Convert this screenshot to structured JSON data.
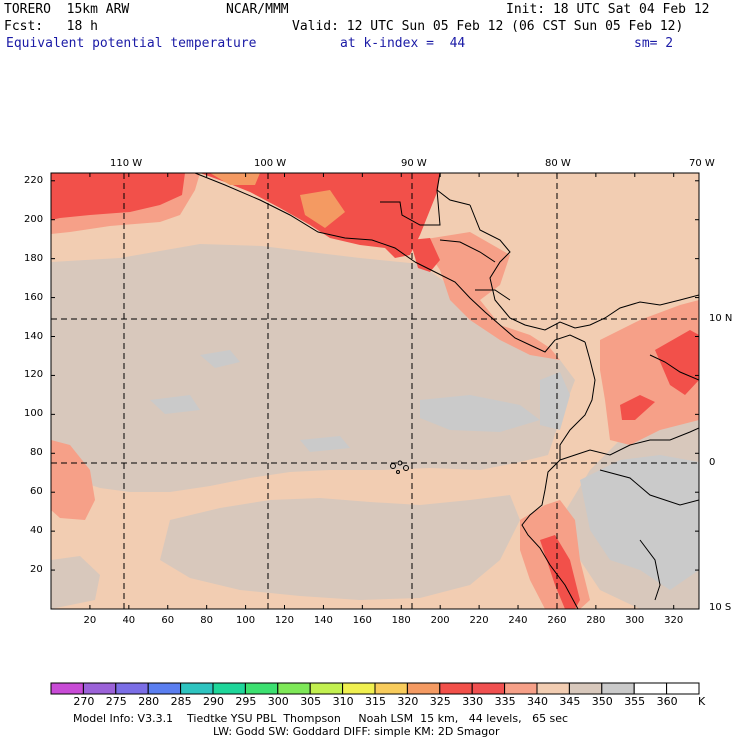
{
  "header": {
    "model": "TORERO  15km ARW",
    "org": "NCAR/MMM",
    "init": "Init: 18 UTC Sat 04 Feb 12",
    "fcst": "Fcst:   18 h",
    "valid": "Valid: 12 UTC Sun 05 Feb 12 (06 CST Sun 05 Feb 12)",
    "field": "Equivalent potential temperature",
    "level": "at k-index =  44",
    "smooth": "sm= 2"
  },
  "map": {
    "lon_labels": [
      "110 W",
      "100 W",
      "90 W",
      "80 W",
      "70 W"
    ],
    "lat_labels": [
      "10 N",
      "0",
      "10 S"
    ],
    "y_ticks": [
      "20",
      "40",
      "60",
      "80",
      "100",
      "120",
      "140",
      "160",
      "180",
      "200",
      "220"
    ],
    "x_ticks": [
      "20",
      "40",
      "60",
      "80",
      "100",
      "120",
      "140",
      "160",
      "180",
      "200",
      "220",
      "240",
      "260",
      "280",
      "300",
      "320"
    ]
  },
  "colorbar": {
    "unit": "K",
    "labels": [
      "270",
      "275",
      "280",
      "285",
      "290",
      "295",
      "300",
      "305",
      "310",
      "315",
      "320",
      "325",
      "330",
      "335",
      "340",
      "345",
      "350",
      "355",
      "360"
    ],
    "colors": [
      "#c84bd6",
      "#9b62d8",
      "#7b6ee6",
      "#5a7ef0",
      "#2ec4c0",
      "#1ed69a",
      "#3ce070",
      "#7ee858",
      "#c2f050",
      "#f0f050",
      "#f8cc5c",
      "#f49a62",
      "#f2504a",
      "#f05050",
      "#f6a088",
      "#f2cdb2",
      "#d8c8bc",
      "#cacaca",
      "#ffffff",
      "#ffffff"
    ]
  },
  "footer": {
    "line1": "Model Info: V3.3.1    Tiedtke YSU PBL  Thompson     Noah LSM  15 km,   44 levels,   65 sec",
    "line2": "LW: Godd SW: Goddard DIFF: simple KM: 2D Smagor"
  }
}
